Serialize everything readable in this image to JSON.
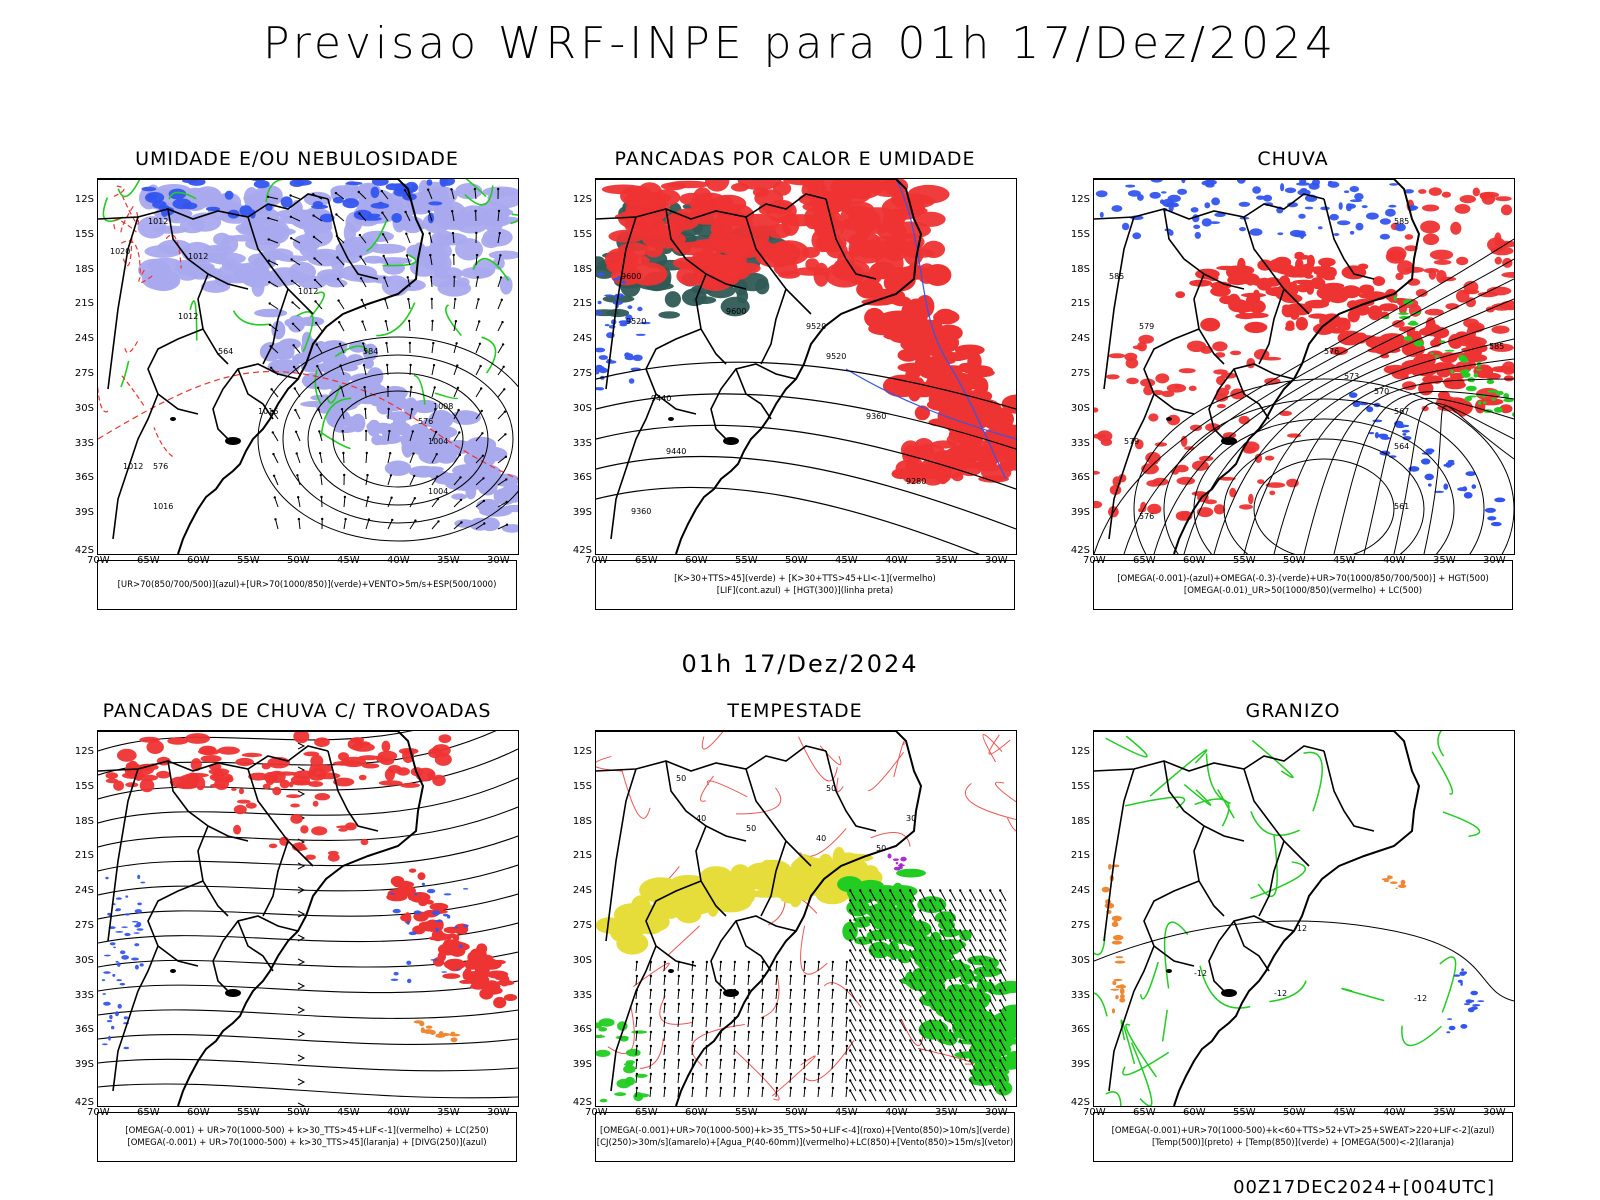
{
  "title": "Previsao WRF-INPE  para 01h 17/Dez/2024",
  "mid_title": "01h 17/Dez/2024",
  "footer": "00Z17DEC2024+[004UTC]",
  "lat_ticks": [
    "12S",
    "15S",
    "18S",
    "21S",
    "24S",
    "27S",
    "30S",
    "33S",
    "36S",
    "39S",
    "42S"
  ],
  "lon_ticks": [
    "70W",
    "65W",
    "60W",
    "55W",
    "50W",
    "45W",
    "40W",
    "35W",
    "30W"
  ],
  "colors": {
    "blue": "#3355ee",
    "green": "#22cc22",
    "red": "#ee3333",
    "teal": "#2f5a55",
    "yellow": "#e6dc3a",
    "orange": "#ee8833",
    "lavender": "#a9a9ee",
    "purple": "#aa22cc"
  },
  "panels": [
    {
      "title": "UMIDADE E/OU NEBULOSIDADE",
      "legend": [
        "[UR>70(850/700/500)](azul)+[UR>70(1000/850)](verde)+VENTO>5m/s+ESP(500/1000)"
      ],
      "labels": [
        "1012",
        "1012",
        "1012",
        "1020",
        "1012",
        "1016",
        "1012",
        "1016",
        "1008",
        "1004",
        "1004",
        "576",
        "564",
        "584",
        "576"
      ]
    },
    {
      "title": "PANCADAS POR CALOR E UMIDADE",
      "legend": [
        "[K>30+TTS>45](verde) + [K>30+TTS>45+LI<-1](vermelho)",
        "[LIF](cont.azul) + [HGT(300)](linha preta)"
      ],
      "labels": [
        "9600",
        "9600",
        "9520",
        "9520",
        "9440",
        "9440",
        "9360",
        "9280",
        "9360",
        "9520"
      ]
    },
    {
      "title": "CHUVA",
      "legend": [
        "[OMEGA(-0.001)-(azul)+OMEGA(-0.3)-(verde)+UR>70(1000/850/700/500)] + HGT(500)",
        "[OMEGA(-0.01)_UR>50(1000/850)(vermelho) + LC(500)"
      ],
      "labels": [
        "585",
        "585",
        "579",
        "576",
        "573",
        "570",
        "567",
        "564",
        "561",
        "579",
        "576",
        "585"
      ]
    },
    {
      "title": "PANCADAS DE CHUVA C/ TROVOADAS",
      "legend": [
        "[OMEGA(-0.001) + UR>70(1000-500) + k>30_TTS>45+LIF<-1](vermelho) + LC(250)",
        "[OMEGA(-0.001) + UR>70(1000-500) + k>30_TTS>45](laranja) + [DIVG(250)](azul)"
      ],
      "labels": []
    },
    {
      "title": "TEMPESTADE",
      "legend": [
        "[OMEGA(-0.001)+UR>70(1000-500)+k>35_TTS>50+LIF<-4](roxo)+[Vento(850)>10m/s](verde)",
        "[CJ(250)>30m/s](amarelo)+[Agua_P(40-60mm)](vermelho)+LC(850)+[Vento(850)>15m/s](vetor)"
      ],
      "labels": [
        "50",
        "50",
        "40",
        "50",
        "40",
        "50",
        "30"
      ]
    },
    {
      "title": "GRANIZO",
      "legend": [
        "[OMEGA(-0.001)+UR>70(1000-500)+k<60+TTS>52+VT>25+SWEAT>220+LIF<-2](azul)",
        "[Temp(500)](preto) + [Temp(850)](verde) + [OMEGA(500)<-2](laranja)"
      ],
      "labels": [
        "-12",
        "-12",
        "-12",
        "-12"
      ]
    }
  ]
}
